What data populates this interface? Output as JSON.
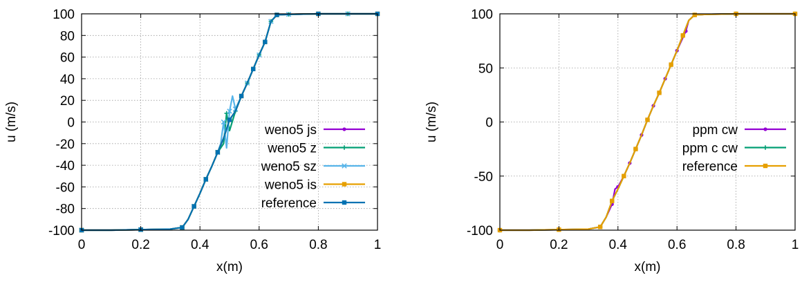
{
  "chart_data": [
    {
      "type": "line",
      "xlabel": "x(m)",
      "ylabel": "u (m/s)",
      "xlim": [
        0,
        1
      ],
      "ylim": [
        -100,
        100
      ],
      "xticks": [
        "0",
        "0.2",
        "0.4",
        "0.6",
        "0.8",
        "1"
      ],
      "yticks": [
        "-100",
        "-80",
        "-60",
        "-40",
        "-20",
        "0",
        "20",
        "40",
        "60",
        "80",
        "100"
      ],
      "grid": true,
      "legend_position": "right",
      "series": [
        {
          "name": "weno5 js",
          "color": "#9400d3",
          "marker": "circle",
          "x": [
            0,
            0.1,
            0.2,
            0.3,
            0.34,
            0.36,
            0.38,
            0.4,
            0.42,
            0.44,
            0.46,
            0.48,
            0.5,
            0.52,
            0.54,
            0.56,
            0.58,
            0.6,
            0.62,
            0.64,
            0.66,
            0.7,
            0.8,
            0.9,
            1
          ],
          "y": [
            -100,
            -100,
            -99.5,
            -99,
            -97.5,
            -90,
            -78,
            -66,
            -53,
            -41,
            -28,
            -15,
            2,
            10,
            24,
            36,
            49,
            62,
            74,
            93,
            99,
            99.5,
            100,
            100,
            100
          ]
        },
        {
          "name": "weno5 z",
          "color": "#009e73",
          "marker": "plus",
          "x": [
            0,
            0.1,
            0.2,
            0.3,
            0.34,
            0.36,
            0.38,
            0.4,
            0.42,
            0.44,
            0.46,
            0.48,
            0.49,
            0.5,
            0.52,
            0.54,
            0.56,
            0.58,
            0.6,
            0.62,
            0.64,
            0.66,
            0.7,
            0.8,
            0.9,
            1
          ],
          "y": [
            -100,
            -100,
            -99.5,
            -99,
            -97.5,
            -90,
            -78,
            -66,
            -53,
            -41,
            -28,
            -20,
            8,
            -8,
            10,
            24,
            36,
            49,
            62,
            74,
            93,
            99,
            99.5,
            100,
            100,
            100
          ]
        },
        {
          "name": "weno5 sz",
          "color": "#56b4e9",
          "marker": "cross",
          "x": [
            0,
            0.1,
            0.2,
            0.3,
            0.34,
            0.36,
            0.38,
            0.4,
            0.42,
            0.44,
            0.46,
            0.47,
            0.48,
            0.49,
            0.5,
            0.51,
            0.52,
            0.54,
            0.56,
            0.58,
            0.6,
            0.62,
            0.64,
            0.66,
            0.7,
            0.8,
            0.9,
            1
          ],
          "y": [
            -100,
            -100,
            -99.5,
            -99,
            -97.5,
            -90,
            -78,
            -66,
            -53,
            -41,
            -28,
            -20,
            0,
            -24,
            10,
            24,
            12,
            24,
            36,
            49,
            62,
            74,
            93,
            99,
            99.5,
            100,
            100,
            100
          ]
        },
        {
          "name": "weno5 is",
          "color": "#e69f00",
          "marker": "square",
          "x": [
            0,
            0.1,
            0.2,
            0.3,
            0.34,
            0.36,
            0.38,
            0.4,
            0.42,
            0.44,
            0.46,
            0.48,
            0.5,
            0.52,
            0.54,
            0.56,
            0.58,
            0.6,
            0.62,
            0.64,
            0.66,
            0.7,
            0.8,
            0.9,
            1
          ],
          "y": [
            -100,
            -100,
            -99.5,
            -99,
            -97.5,
            -90,
            -78,
            -66,
            -53,
            -41,
            -28,
            -15,
            2,
            10,
            24,
            36,
            49,
            62,
            74,
            93,
            99,
            99.5,
            100,
            100,
            100
          ]
        },
        {
          "name": "reference",
          "color": "#0072b2",
          "marker": "square",
          "x": [
            0,
            0.1,
            0.2,
            0.3,
            0.34,
            0.36,
            0.38,
            0.4,
            0.42,
            0.44,
            0.46,
            0.48,
            0.5,
            0.52,
            0.54,
            0.56,
            0.58,
            0.6,
            0.62,
            0.64,
            0.66,
            0.7,
            0.8,
            0.9,
            1
          ],
          "y": [
            -100,
            -100,
            -99.5,
            -99,
            -97.5,
            -90,
            -78,
            -66,
            -53,
            -41,
            -28,
            -15,
            2,
            10,
            24,
            36,
            49,
            62,
            74,
            93,
            99,
            99.5,
            100,
            100,
            100
          ]
        }
      ]
    },
    {
      "type": "line",
      "xlabel": "x(m)",
      "ylabel": "u (m/s)",
      "xlim": [
        0,
        1
      ],
      "ylim": [
        -100,
        100
      ],
      "xticks": [
        "0",
        "0.2",
        "0.4",
        "0.6",
        "0.8",
        "1"
      ],
      "yticks": [
        "-100",
        "-50",
        "0",
        "50",
        "100"
      ],
      "grid": true,
      "legend_position": "right",
      "series": [
        {
          "name": "ppm cw",
          "color": "#9400d3",
          "marker": "circle",
          "x": [
            0,
            0.1,
            0.2,
            0.3,
            0.34,
            0.36,
            0.38,
            0.39,
            0.4,
            0.42,
            0.44,
            0.46,
            0.48,
            0.5,
            0.52,
            0.54,
            0.56,
            0.58,
            0.6,
            0.62,
            0.63,
            0.64,
            0.66,
            0.7,
            0.8,
            0.9,
            1
          ],
          "y": [
            -100,
            -100,
            -99.5,
            -99,
            -97,
            -88,
            -76,
            -62,
            -60,
            -50,
            -38,
            -25,
            -12,
            2,
            15,
            27,
            40,
            53,
            66,
            78,
            84,
            94,
            99,
            99.5,
            100,
            100,
            100
          ]
        },
        {
          "name": "ppm c cw",
          "color": "#009e73",
          "marker": "plus",
          "x": [
            0,
            0.1,
            0.2,
            0.3,
            0.34,
            0.36,
            0.38,
            0.4,
            0.42,
            0.44,
            0.46,
            0.48,
            0.5,
            0.52,
            0.54,
            0.56,
            0.58,
            0.6,
            0.62,
            0.64,
            0.66,
            0.7,
            0.8,
            0.9,
            1
          ],
          "y": [
            -100,
            -100,
            -99.5,
            -99,
            -97,
            -88,
            -73,
            -62,
            -50,
            -38,
            -25,
            -12,
            2,
            15,
            27,
            40,
            53,
            66,
            80,
            94,
            99,
            99.5,
            100,
            100,
            100
          ]
        },
        {
          "name": "reference",
          "color": "#e69f00",
          "marker": "square",
          "x": [
            0,
            0.1,
            0.2,
            0.3,
            0.34,
            0.36,
            0.38,
            0.4,
            0.42,
            0.44,
            0.46,
            0.48,
            0.5,
            0.52,
            0.54,
            0.56,
            0.58,
            0.6,
            0.62,
            0.64,
            0.66,
            0.7,
            0.8,
            0.9,
            1
          ],
          "y": [
            -100,
            -100,
            -99.5,
            -99,
            -97,
            -88,
            -73,
            -62,
            -50,
            -38,
            -25,
            -12,
            2,
            15,
            27,
            40,
            53,
            66,
            80,
            94,
            99,
            99.5,
            100,
            100,
            100
          ]
        }
      ]
    }
  ]
}
